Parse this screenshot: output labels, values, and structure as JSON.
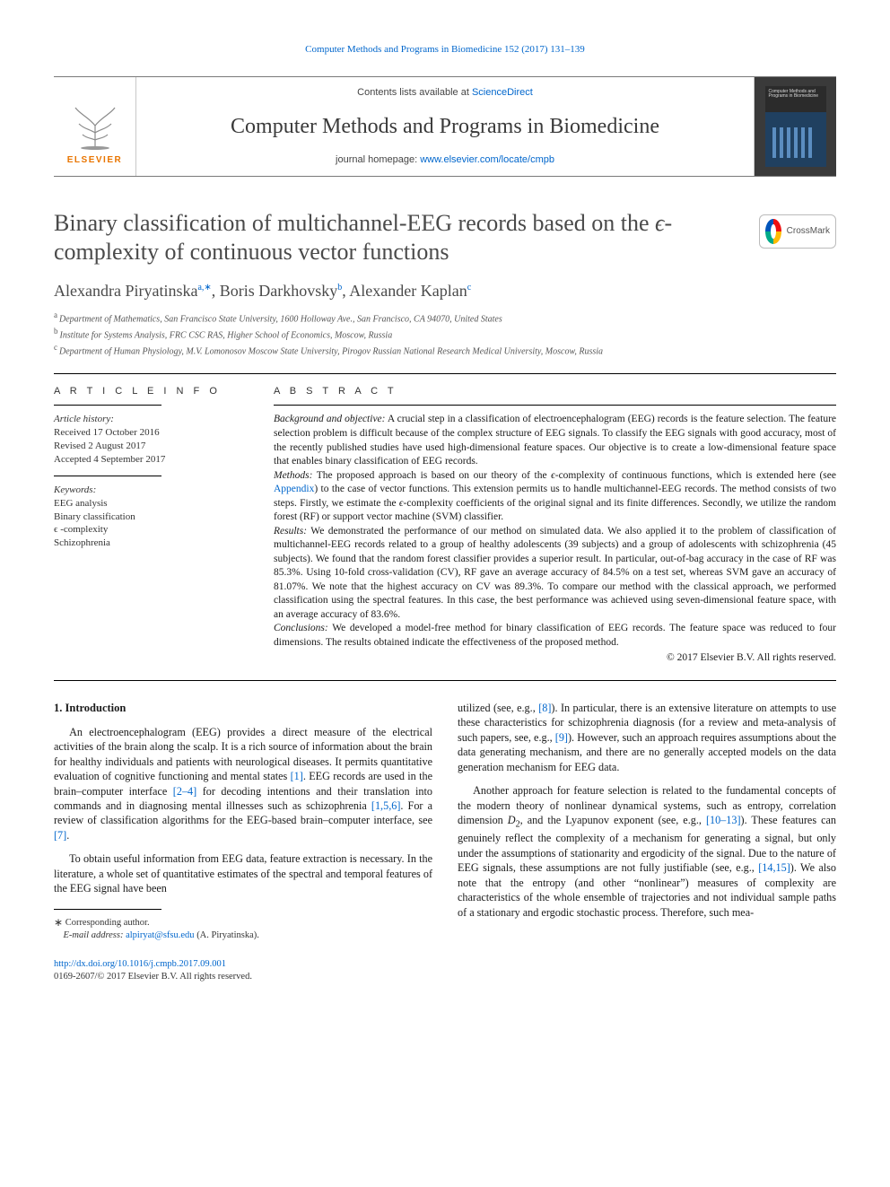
{
  "running_head": "Computer Methods and Programs in Biomedicine 152 (2017) 131–139",
  "masthead": {
    "contents_prefix": "Contents lists available at ",
    "contents_link": "ScienceDirect",
    "journal_name": "Computer Methods and Programs in Biomedicine",
    "homepage_prefix": "journal homepage: ",
    "homepage_link": "www.elsevier.com/locate/cmpb",
    "publisher_word": "ELSEVIER",
    "cover_label": "Computer Methods and Programs in Biomedicine"
  },
  "crossmark_label": "CrossMark",
  "title_html": "Binary classification of multichannel-EEG records based on the <i>ϵ</i>-complexity of continuous vector functions",
  "authors": [
    {
      "name": "Alexandra Piryatinska",
      "marks": "a,∗"
    },
    {
      "name": "Boris Darkhovsky",
      "marks": "b"
    },
    {
      "name": "Alexander Kaplan",
      "marks": "c"
    }
  ],
  "affiliations": [
    {
      "mark": "a",
      "text": "Department of Mathematics, San Francisco State University, 1600 Holloway Ave., San Francisco, CA 94070, United States"
    },
    {
      "mark": "b",
      "text": "Institute for Systems Analysis, FRC CSC RAS, Higher School of Economics, Moscow, Russia"
    },
    {
      "mark": "c",
      "text": "Department of Human Physiology, M.V. Lomonosov Moscow State University, Pirogov Russian National Research Medical University, Moscow, Russia"
    }
  ],
  "info": {
    "heading": "A R T I C L E   I N F O",
    "history_label": "Article history:",
    "history": [
      "Received 17 October 2016",
      "Revised 2 August 2017",
      "Accepted 4 September 2017"
    ],
    "keywords_label": "Keywords:",
    "keywords": [
      "EEG analysis",
      "Binary classification",
      "ϵ -complexity",
      "Schizophrenia"
    ]
  },
  "abstract": {
    "heading": "A B S T R A C T",
    "paragraphs": [
      "<i>Background and objective:</i> A crucial step in a classification of electroencephalogram (EEG) records is the feature selection. The feature selection problem is difficult because of the complex structure of EEG signals. To classify the EEG signals with good accuracy, most of the recently published studies have used high-dimensional feature spaces. Our objective is to create a low-dimensional feature space that enables binary classification of EEG records.",
      "<i>Methods:</i> The proposed approach is based on our theory of the <i>ϵ</i>-complexity of continuous functions, which is extended here (see <a href=\"#\">Appendix</a>) to the case of vector functions. This extension permits us to handle multichannel-EEG records. The method consists of two steps. Firstly, we estimate the <i>ϵ</i>-complexity coefficients of the original signal and its finite differences. Secondly, we utilize the random forest (RF) or support vector machine (SVM) classifier.",
      "<i>Results:</i> We demonstrated the performance of our method on simulated data. We also applied it to the problem of classification of multichannel-EEG records related to a group of healthy adolescents (39 subjects) and a group of adolescents with schizophrenia (45 subjects). We found that the random forest classifier provides a superior result. In particular, out-of-bag accuracy in the case of RF was 85.3%. Using 10-fold cross-validation (CV), RF gave an average accuracy of 84.5% on a test set, whereas SVM gave an accuracy of 81.07%. We note that the highest accuracy on CV was 89.3%. To compare our method with the classical approach, we performed classification using the spectral features. In this case, the best performance was achieved using seven-dimensional feature space, with an average accuracy of 83.6%.",
      "<i>Conclusions:</i> We developed a model-free method for binary classification of EEG records. The feature space was reduced to four dimensions. The results obtained indicate the effectiveness of the proposed method."
    ],
    "copyright": "© 2017 Elsevier B.V. All rights reserved."
  },
  "body": {
    "section_heading": "1. Introduction",
    "left_paras": [
      "An electroencephalogram (EEG) provides a direct measure of the electrical activities of the brain along the scalp. It is a rich source of information about the brain for healthy individuals and patients with neurological diseases. It permits quantitative evaluation of cognitive functioning and mental states <a href=\"#\">[1]</a>. EEG records are used in the brain–computer interface <a href=\"#\">[2–4]</a> for decoding intentions and their translation into commands and in diagnosing mental illnesses such as schizophrenia <a href=\"#\">[1,5,6]</a>. For a review of classification algorithms for the EEG-based brain–computer interface, see <a href=\"#\">[7]</a>.",
      "To obtain useful information from EEG data, feature extraction is necessary. In the literature, a whole set of quantitative estimates of the spectral and temporal features of the EEG signal have been"
    ],
    "right_paras": [
      "utilized (see, e.g., <a href=\"#\">[8]</a>). In particular, there is an extensive literature on attempts to use these characteristics for schizophrenia diagnosis (for a review and meta-analysis of such papers, see, e.g., <a href=\"#\">[9]</a>). However, such an approach requires assumptions about the data generating mechanism, and there are no generally accepted models on the data generation mechanism for EEG data.",
      "Another approach for feature selection is related to the fundamental concepts of the modern theory of nonlinear dynamical systems, such as entropy, correlation dimension <i>D</i><sub>2</sub>, and the Lyapunov exponent (see, e.g., <a href=\"#\">[10–13]</a>). These features can genuinely reflect the complexity of a mechanism for generating a signal, but only under the assumptions of stationarity and ergodicity of the signal. Due to the nature of EEG signals, these assumptions are not fully justifiable (see, e.g., <a href=\"#\">[14,15]</a>). We also note that the entropy (and other “nonlinear”) measures of complexity are characteristics of the whole ensemble of trajectories and not individual sample paths of a stationary and ergodic stochastic process. Therefore, such mea-"
    ]
  },
  "footer": {
    "corresponding_label": "Corresponding author.",
    "email_label": "E-mail address:",
    "email": "alpiryat@sfsu.edu",
    "email_paren": "(A. Piryatinska).",
    "doi_link": "http://dx.doi.org/10.1016/j.cmpb.2017.09.001",
    "issn_line": "0169-2607/© 2017 Elsevier B.V. All rights reserved."
  },
  "colors": {
    "link": "#0066cc",
    "text": "#1a1a1a",
    "muted": "#4a4a4a",
    "orange": "#e97500",
    "rule": "#000000"
  }
}
